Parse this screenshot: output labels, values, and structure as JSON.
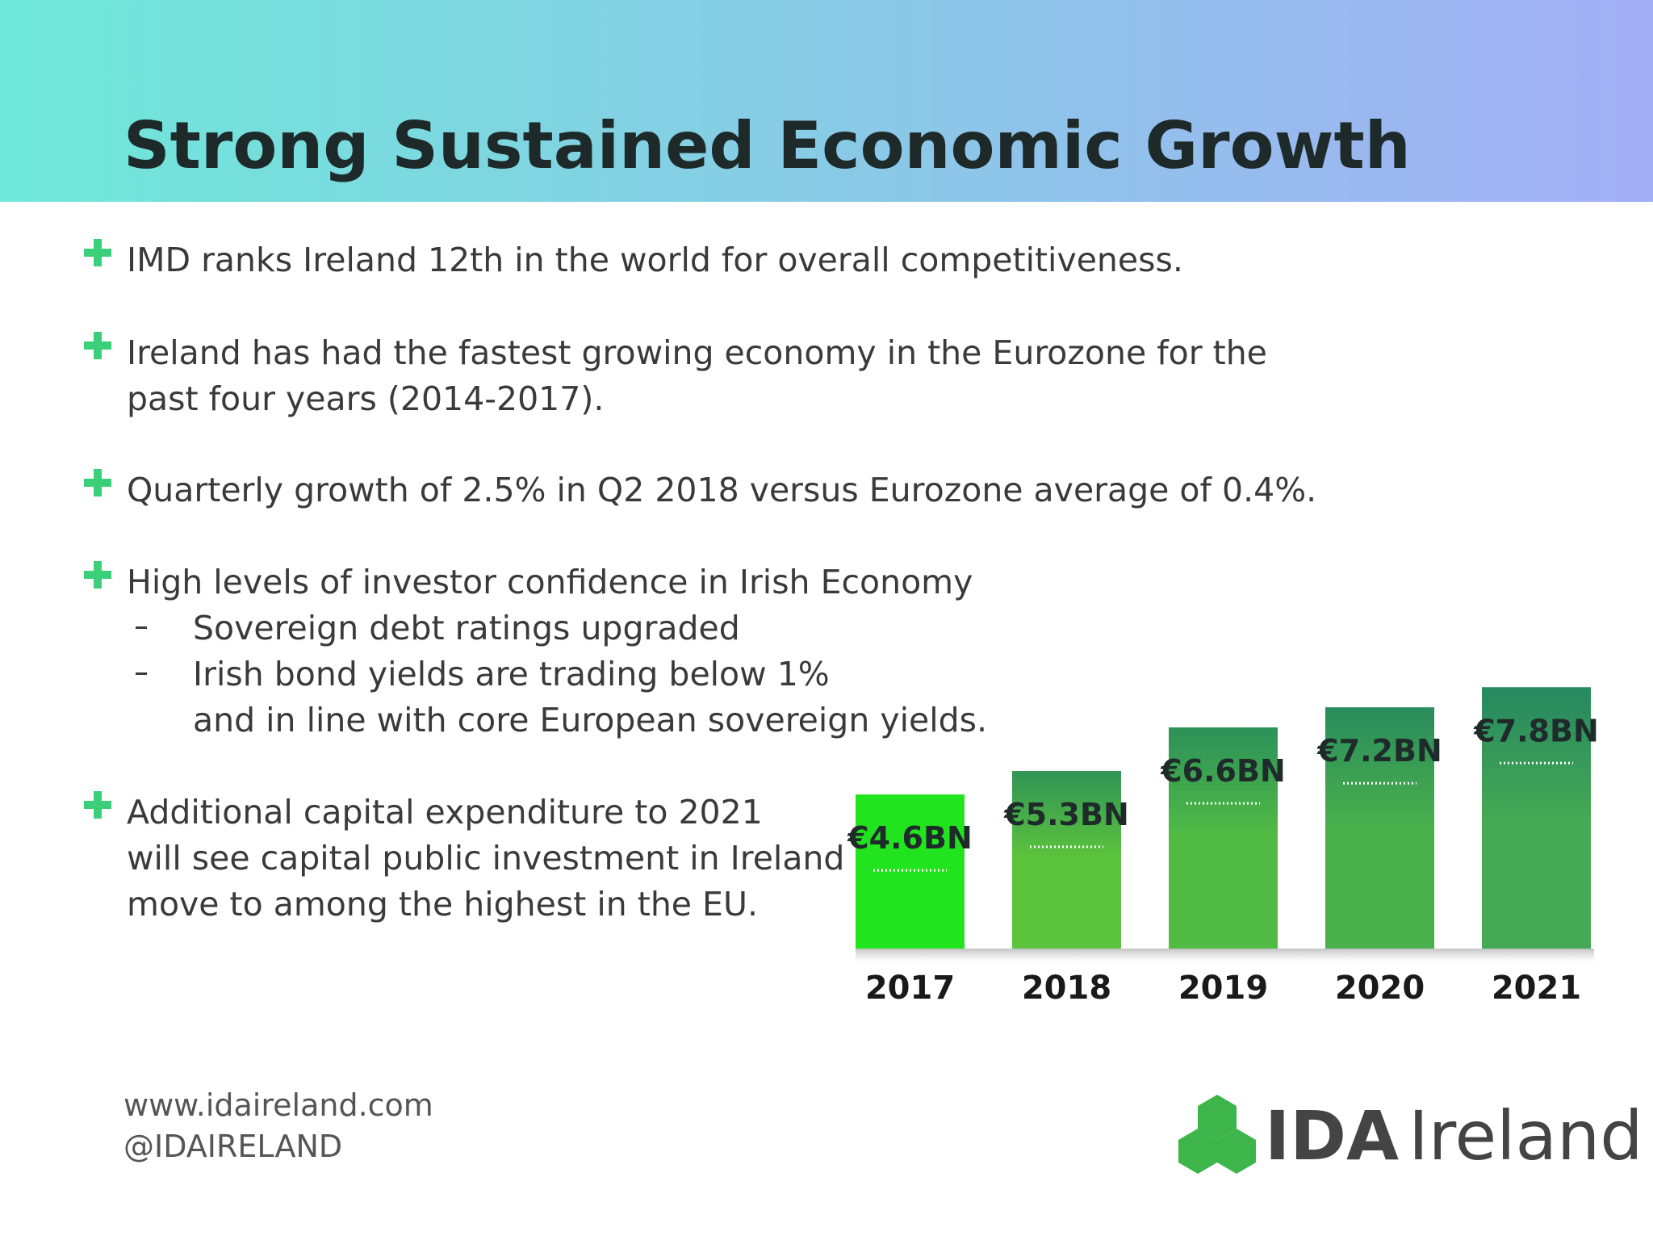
{
  "header": {
    "title": "Strong Sustained Economic Growth"
  },
  "bullets": [
    {
      "lines": [
        "IMD ranks Ireland 12th in the world for overall competitiveness."
      ]
    },
    {
      "lines": [
        "Ireland has had the fastest growing economy in the Eurozone for the",
        "past four years (2014-2017)."
      ]
    },
    {
      "lines": [
        "Quarterly growth of 2.5% in Q2 2018 versus Eurozone average of 0.4%."
      ]
    },
    {
      "lines": [
        "High levels of investor confidence in Irish Economy"
      ],
      "sub": [
        {
          "lines": [
            "Sovereign debt ratings upgraded"
          ]
        },
        {
          "lines": [
            "Irish bond yields are trading below 1%",
            "and in line with core European sovereign yields."
          ]
        }
      ]
    },
    {
      "lines": [
        "Additional capital expenditure to 2021",
        "will see capital public investment in Ireland",
        "move to among the highest in the EU."
      ]
    }
  ],
  "footer": {
    "website": "www.idaireland.com",
    "handle": "@IDAIRELAND",
    "logo_bold": "IDA",
    "logo_rest": "Ireland"
  },
  "chart_data": {
    "type": "bar",
    "categories": [
      "2017",
      "2018",
      "2019",
      "2020",
      "2021"
    ],
    "values": [
      4.6,
      5.3,
      6.6,
      7.2,
      7.8
    ],
    "value_labels": [
      "€4.6BN",
      "€5.3BN",
      "€6.6BN",
      "€7.2BN",
      "€7.8BN"
    ],
    "colors": [
      "#22e41e",
      "#5cc43c",
      "#52bb44",
      "#4ab04c",
      "#44a854"
    ]
  }
}
